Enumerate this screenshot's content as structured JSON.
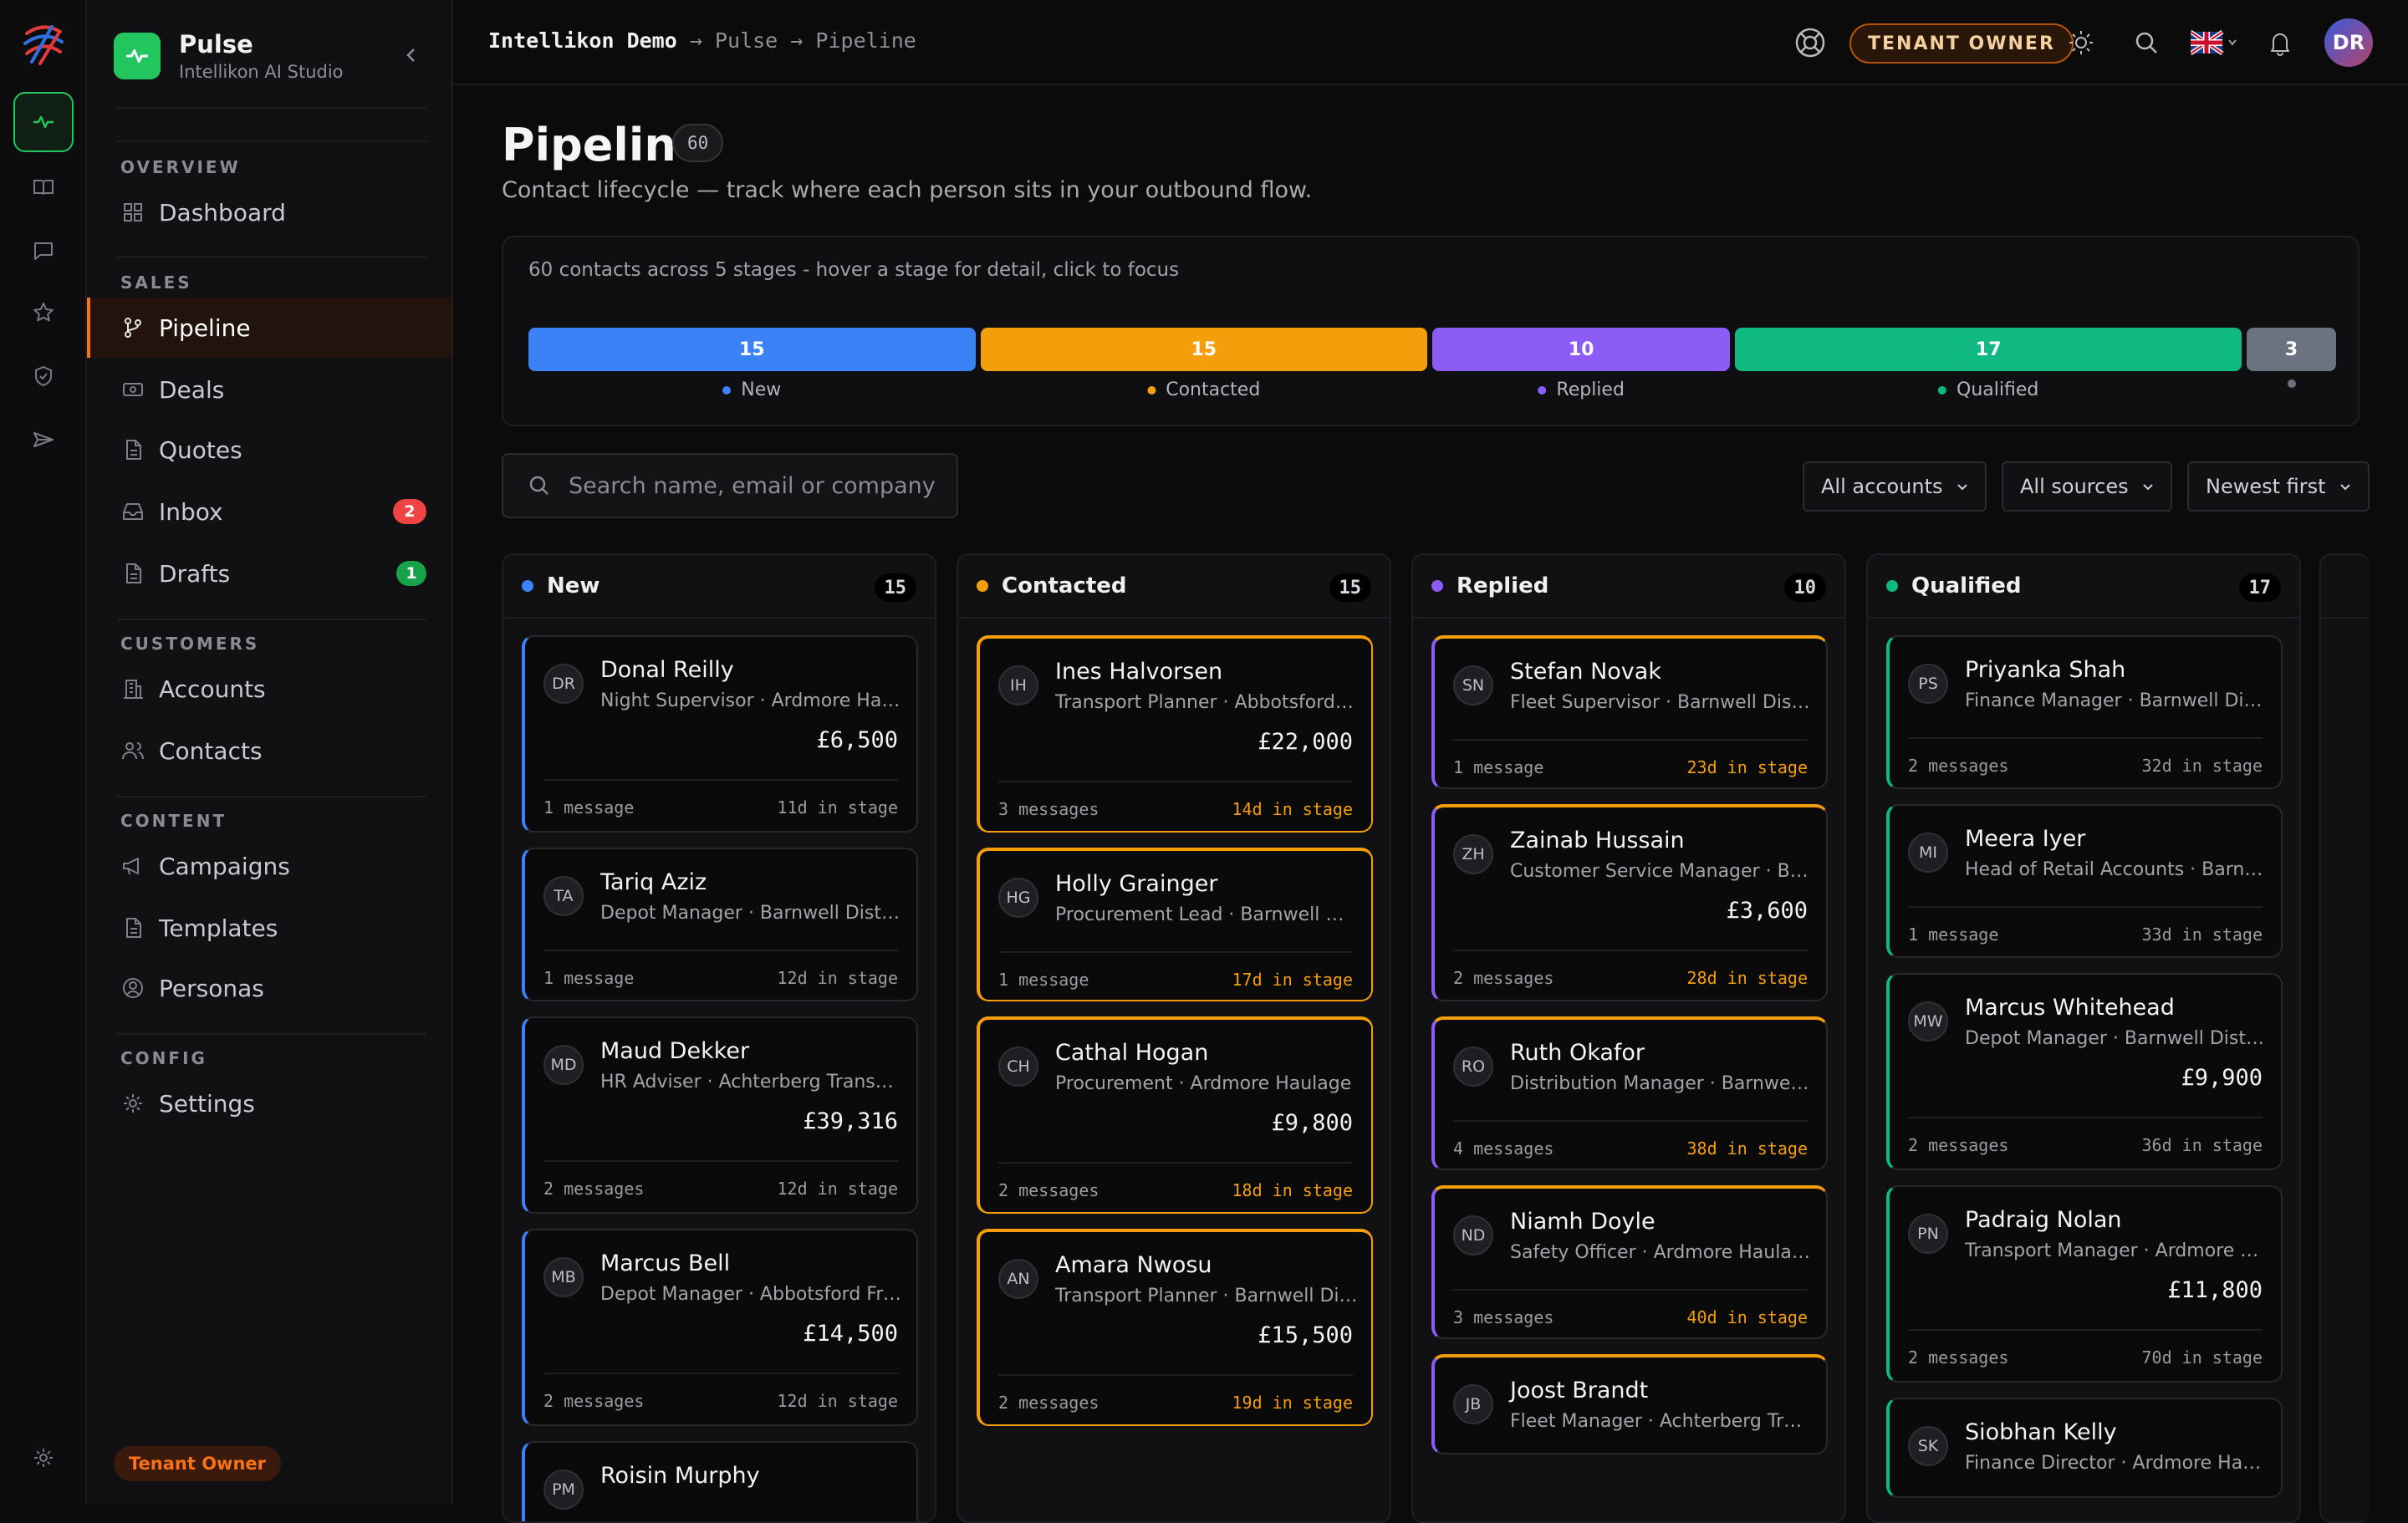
{
  "app": {
    "name": "Pulse",
    "subtitle": "Intellikon AI Studio"
  },
  "colors": {
    "accent": "#f97316",
    "new": "#3b82f6",
    "contacted": "#f59e0b",
    "replied": "#8b5cf6",
    "qualified": "#10b981",
    "other": "#6b7280",
    "success": "#22c55e"
  },
  "sidebar": {
    "sections": {
      "overview": "OVERVIEW",
      "sales": "SALES",
      "customers": "CUSTOMERS",
      "content": "CONTENT",
      "config": "CONFIG"
    },
    "items": {
      "dashboard": "Dashboard",
      "pipeline": "Pipeline",
      "deals": "Deals",
      "quotes": "Quotes",
      "inbox": "Inbox",
      "inbox_badge": "2",
      "drafts": "Drafts",
      "drafts_badge": "1",
      "accounts": "Accounts",
      "contacts": "Contacts",
      "campaigns": "Campaigns",
      "templates": "Templates",
      "personas": "Personas",
      "settings": "Settings"
    },
    "role": "Tenant Owner"
  },
  "topbar": {
    "tenant": "Intellikon Demo",
    "crumb_sep": "→",
    "crumb_app": "Pulse",
    "crumb_page": "Pipeline",
    "owner_label": "TENANT OWNER",
    "avatar": "DR"
  },
  "page": {
    "title": "Pipeline",
    "count": "60",
    "subtitle": "Contact lifecycle — track where each person sits in your outbound flow."
  },
  "summary": {
    "text": "60 contacts across 5 stages - hover a stage for detail, click to focus",
    "segments": [
      {
        "label": "New",
        "value": 15,
        "display": "15"
      },
      {
        "label": "Contacted",
        "value": 15,
        "display": "15"
      },
      {
        "label": "Replied",
        "value": 10,
        "display": "10"
      },
      {
        "label": "Qualified",
        "value": 17,
        "display": "17"
      },
      {
        "label": "",
        "value": 3,
        "display": "3"
      }
    ]
  },
  "filters": {
    "search_placeholder": "Search name, email or company",
    "accounts": "All accounts",
    "sources": "All sources",
    "sort": "Newest first"
  },
  "columns": [
    {
      "title": "New",
      "count": "15",
      "cards": [
        {
          "initials": "DR",
          "name": "Donal Reilly",
          "role": "Night Supervisor · Ardmore Haulage",
          "amount": "£6,500",
          "messages": "1 message",
          "days": "11d in stage"
        },
        {
          "initials": "TA",
          "name": "Tariq Aziz",
          "role": "Depot Manager · Barnwell Distribution",
          "amount": "",
          "messages": "1 message",
          "days": "12d in stage"
        },
        {
          "initials": "MD",
          "name": "Maud Dekker",
          "role": "HR Adviser · Achterberg Transport",
          "amount": "£39,316",
          "messages": "2 messages",
          "days": "12d in stage"
        },
        {
          "initials": "MB",
          "name": "Marcus Bell",
          "role": "Depot Manager · Abbotsford Freight",
          "amount": "£14,500",
          "messages": "2 messages",
          "days": "12d in stage"
        },
        {
          "initials": "PM",
          "name": "Roisin Murphy",
          "role": "",
          "amount": "",
          "messages": "",
          "days": ""
        }
      ]
    },
    {
      "title": "Contacted",
      "count": "15",
      "cards": [
        {
          "initials": "IH",
          "name": "Ines Halvorsen",
          "role": "Transport Planner · Abbotsford Freight",
          "amount": "£22,000",
          "messages": "3 messages",
          "days": "14d in stage"
        },
        {
          "initials": "HG",
          "name": "Holly Grainger",
          "role": "Procurement Lead · Barnwell Distribution",
          "amount": "",
          "messages": "1 message",
          "days": "17d in stage"
        },
        {
          "initials": "CH",
          "name": "Cathal Hogan",
          "role": "Procurement · Ardmore Haulage",
          "amount": "£9,800",
          "messages": "2 messages",
          "days": "18d in stage"
        },
        {
          "initials": "AN",
          "name": "Amara Nwosu",
          "role": "Transport Planner · Barnwell Distribution",
          "amount": "£15,500",
          "messages": "2 messages",
          "days": "19d in stage"
        }
      ]
    },
    {
      "title": "Replied",
      "count": "10",
      "cards": [
        {
          "initials": "SN",
          "name": "Stefan Novak",
          "role": "Fleet Supervisor · Barnwell Distribution",
          "amount": "",
          "messages": "1 message",
          "days": "23d in stage"
        },
        {
          "initials": "ZH",
          "name": "Zainab Hussain",
          "role": "Customer Service Manager · Barnwell Distribution",
          "amount": "£3,600",
          "messages": "2 messages",
          "days": "28d in stage"
        },
        {
          "initials": "RO",
          "name": "Ruth Okafor",
          "role": "Distribution Manager · Barnwell Distribution",
          "amount": "",
          "messages": "4 messages",
          "days": "38d in stage"
        },
        {
          "initials": "ND",
          "name": "Niamh Doyle",
          "role": "Safety Officer · Ardmore Haulage",
          "amount": "",
          "messages": "3 messages",
          "days": "40d in stage"
        },
        {
          "initials": "JB",
          "name": "Joost Brandt",
          "role": "Fleet Manager · Achterberg Transport",
          "amount": "",
          "messages": "",
          "days": ""
        }
      ]
    },
    {
      "title": "Qualified",
      "count": "17",
      "cards": [
        {
          "initials": "PS",
          "name": "Priyanka Shah",
          "role": "Finance Manager · Barnwell Distribution",
          "amount": "",
          "messages": "2 messages",
          "days": "32d in stage"
        },
        {
          "initials": "MI",
          "name": "Meera Iyer",
          "role": "Head of Retail Accounts · Barnwell Distribution",
          "amount": "",
          "messages": "1 message",
          "days": "33d in stage"
        },
        {
          "initials": "MW",
          "name": "Marcus Whitehead",
          "role": "Depot Manager · Barnwell Distribution",
          "amount": "£9,900",
          "messages": "2 messages",
          "days": "36d in stage"
        },
        {
          "initials": "PN",
          "name": "Padraig Nolan",
          "role": "Transport Manager · Ardmore Haulage",
          "amount": "£11,800",
          "messages": "2 messages",
          "days": "70d in stage"
        },
        {
          "initials": "SK",
          "name": "Siobhan Kelly",
          "role": "Finance Director · Ardmore Haulage",
          "amount": "",
          "messages": "",
          "days": ""
        }
      ]
    }
  ]
}
